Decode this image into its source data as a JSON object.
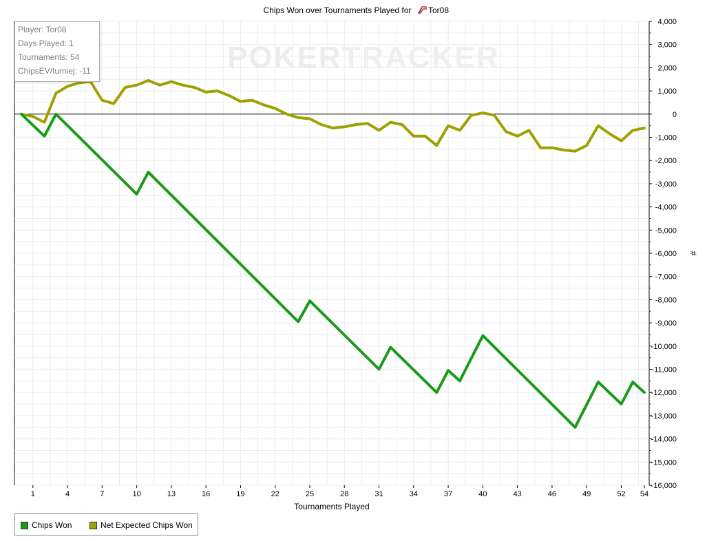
{
  "chart_data": {
    "type": "line",
    "title": "Chips Won over Tournaments Played for",
    "title_player": "Tor08",
    "xlabel": "Tournaments Played",
    "ylabel": "#",
    "ylim": [
      -16000,
      4000
    ],
    "xlim": [
      0,
      55
    ],
    "x_ticks": [
      1,
      4,
      7,
      10,
      13,
      16,
      19,
      22,
      25,
      28,
      31,
      34,
      37,
      40,
      43,
      46,
      49,
      52,
      54
    ],
    "y_ticks": [
      4000,
      3000,
      2000,
      1000,
      0,
      -1000,
      -2000,
      -3000,
      -4000,
      -5000,
      -6000,
      -7000,
      -8000,
      -9000,
      -10000,
      -11000,
      -12000,
      -13000,
      -14000,
      -15000,
      -16000
    ],
    "y_tick_labels": [
      "4,000",
      "3,000",
      "2,000",
      "1,000",
      "0",
      "-1,000",
      "-2,000",
      "-3,000",
      "-4,000",
      "-5,000",
      "-6,000",
      "-7,000",
      "-8,000",
      "-9,000",
      "-10,000",
      "-11,000",
      "-12,000",
      "-13,000",
      "-14,000",
      "-15,000",
      "-16,000"
    ],
    "grid": true,
    "legend_position": "bottom-left",
    "series": [
      {
        "name": "Chips Won",
        "color": "#1a9a1a",
        "x": [
          0,
          2,
          3,
          10,
          11,
          24,
          25,
          31,
          32,
          36,
          37,
          38,
          40,
          48,
          50,
          52,
          53,
          54
        ],
        "values": [
          0,
          -950,
          0,
          -3450,
          -2500,
          -8950,
          -8050,
          -11000,
          -10050,
          -12000,
          -11050,
          -11500,
          -9550,
          -13500,
          -11550,
          -12500,
          -11550,
          -12000
        ]
      },
      {
        "name": "Net Expected Chips Won",
        "color": "#a0a000",
        "x": [
          0,
          1,
          2,
          3,
          4,
          5,
          6,
          7,
          8,
          9,
          10,
          11,
          12,
          13,
          14,
          15,
          16,
          17,
          18,
          19,
          20,
          21,
          22,
          23,
          24,
          25,
          26,
          27,
          28,
          29,
          30,
          31,
          32,
          33,
          34,
          35,
          36,
          37,
          38,
          39,
          40,
          41,
          42,
          43,
          44,
          45,
          46,
          47,
          48,
          49,
          50,
          51,
          52,
          53,
          54
        ],
        "values": [
          0,
          -100,
          -350,
          900,
          1200,
          1350,
          1400,
          600,
          450,
          1150,
          1250,
          1450,
          1250,
          1400,
          1250,
          1150,
          950,
          1000,
          800,
          550,
          600,
          400,
          250,
          0,
          -150,
          -200,
          -450,
          -600,
          -550,
          -450,
          -400,
          -700,
          -350,
          -450,
          -950,
          -950,
          -1350,
          -500,
          -700,
          -50,
          50,
          -50,
          -750,
          -950,
          -700,
          -1450,
          -1450,
          -1550,
          -1600,
          -1350,
          -500,
          -850,
          -1150,
          -700,
          -600
        ]
      }
    ]
  },
  "info_box": {
    "player": "Player: Tor08",
    "days_played": "Days Played: 1",
    "tournaments": "Tournaments: 54",
    "chips_ev": "ChipsEV/turniej: -11"
  },
  "watermark": {
    "part1": "POKER",
    "part2": "TRACKER"
  },
  "legend": {
    "items": [
      "Chips Won",
      "Net Expected Chips Won"
    ]
  }
}
